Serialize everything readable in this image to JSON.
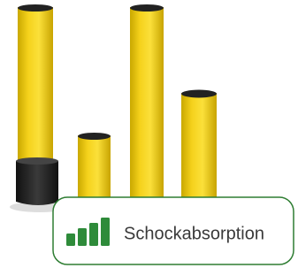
{
  "badge": {
    "label": "Schockabsorption"
  }
}
